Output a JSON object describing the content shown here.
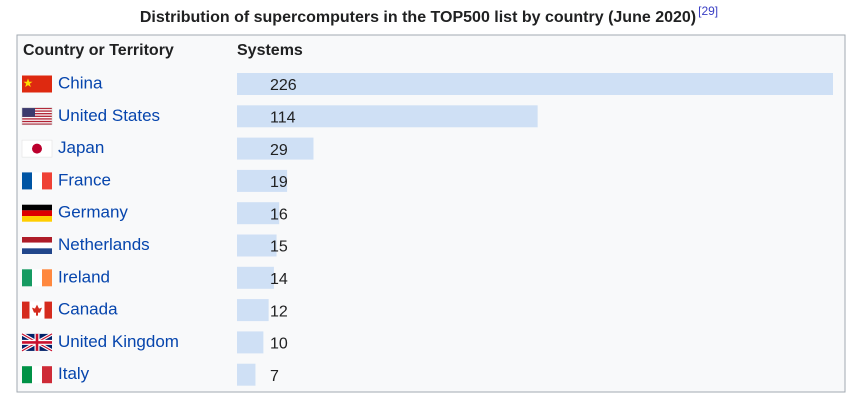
{
  "chart_data": {
    "type": "bar",
    "title": "Distribution of supercomputers in the TOP500 list by country (June 2020)",
    "title_ref": "[29]",
    "category_header": "Country or Territory",
    "value_header": "Systems",
    "categories": [
      "China",
      "United States",
      "Japan",
      "France",
      "Germany",
      "Netherlands",
      "Ireland",
      "Canada",
      "United Kingdom",
      "Italy"
    ],
    "values": [
      226,
      114,
      29,
      19,
      16,
      15,
      14,
      12,
      10,
      7
    ],
    "color": "#cfe0f5"
  }
}
